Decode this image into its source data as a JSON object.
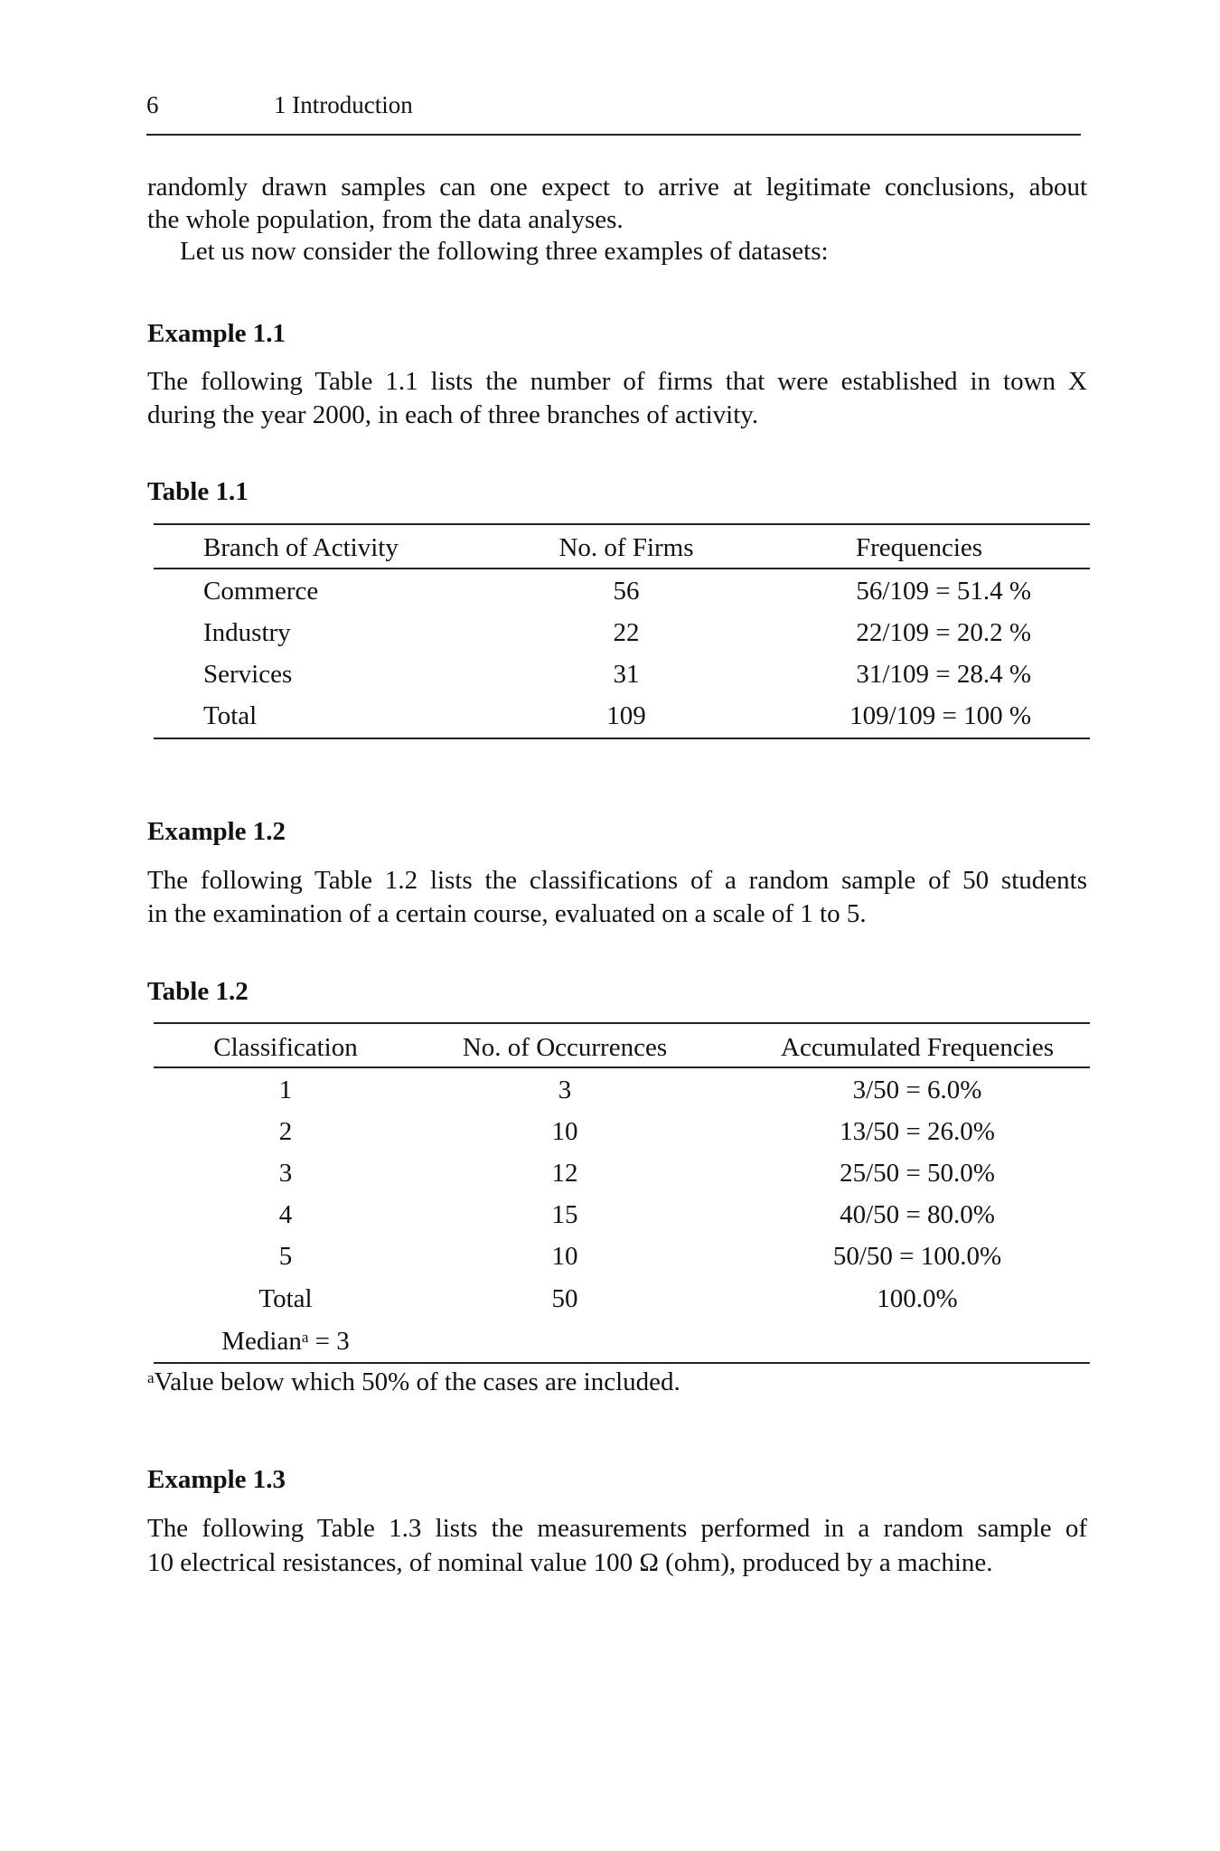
{
  "header": {
    "page_number": "6",
    "chapter": "1 Introduction"
  },
  "intro": {
    "lines": [
      "randomly drawn samples can one expect to arrive at legitimate conclusions, about",
      "the whole population, from the data analyses.",
      "Let us now consider the following three examples of datasets:"
    ]
  },
  "example1": {
    "heading": "Example 1.1",
    "lines": [
      "The following Table 1.1 lists the number of firms that were established in town X",
      "during the year 2000, in each of three branches of activity."
    ],
    "table": {
      "caption": "Table 1.1",
      "columns": [
        "Branch of Activity",
        "No. of Firms",
        "Frequencies"
      ],
      "rows": [
        [
          "Commerce",
          "56",
          "56/109 = 51.4 %"
        ],
        [
          "Industry",
          "22",
          "22/109 = 20.2 %"
        ],
        [
          "Services",
          "31",
          "31/109 = 28.4 %"
        ],
        [
          "Total",
          "109",
          "109/109 = 100 %"
        ]
      ]
    }
  },
  "example2": {
    "heading": "Example 1.2",
    "lines": [
      "The following Table 1.2 lists the classifications of a random sample of 50 students",
      "in the examination of a certain course, evaluated on a scale of 1 to 5."
    ],
    "table": {
      "caption": "Table 1.2",
      "columns": [
        "Classification",
        "No. of Occurrences",
        "Accumulated Frequencies"
      ],
      "rows": [
        [
          "1",
          "3",
          "3/50 = 6.0%"
        ],
        [
          "2",
          "10",
          "13/50 = 26.0%"
        ],
        [
          "3",
          "12",
          "25/50 = 50.0%"
        ],
        [
          "4",
          "15",
          "40/50 = 80.0%"
        ],
        [
          "5",
          "10",
          "50/50 = 100.0%"
        ],
        [
          "Total",
          "50",
          "100.0%"
        ]
      ],
      "median_label": "Median",
      "median_mark": "a",
      "median_value": " = 3",
      "footnote_mark": "a",
      "footnote": "Value below which 50% of the cases are included."
    }
  },
  "example3": {
    "heading": "Example 1.3",
    "lines": [
      "The following Table 1.3 lists the measurements performed in a random sample of",
      "10 electrical resistances, of nominal value 100 Ω (ohm), produced by a machine."
    ]
  }
}
